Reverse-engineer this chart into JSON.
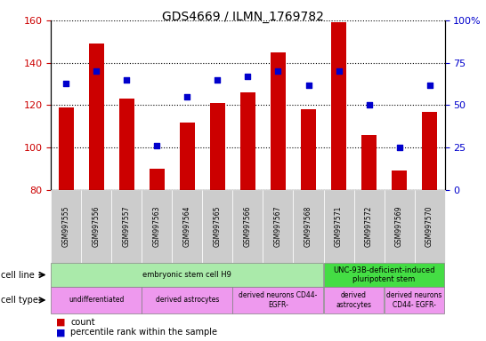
{
  "title": "GDS4669 / ILMN_1769782",
  "samples": [
    "GSM997555",
    "GSM997556",
    "GSM997557",
    "GSM997563",
    "GSM997564",
    "GSM997565",
    "GSM997566",
    "GSM997567",
    "GSM997568",
    "GSM997571",
    "GSM997572",
    "GSM997569",
    "GSM997570"
  ],
  "counts": [
    119,
    149,
    123,
    90,
    112,
    121,
    126,
    145,
    118,
    159,
    106,
    89,
    117
  ],
  "percentiles": [
    63,
    70,
    65,
    26,
    55,
    65,
    67,
    70,
    62,
    70,
    50,
    25,
    62
  ],
  "ylim_left": [
    80,
    160
  ],
  "ylim_right": [
    0,
    100
  ],
  "yticks_left": [
    80,
    100,
    120,
    140,
    160
  ],
  "yticks_right": [
    0,
    25,
    50,
    75,
    100
  ],
  "ytick_labels_right": [
    "0",
    "25",
    "50",
    "75",
    "100%"
  ],
  "bar_color": "#cc0000",
  "dot_color": "#0000cc",
  "bar_bottom": 80,
  "cell_line_groups": [
    {
      "label": "embryonic stem cell H9",
      "start": 0,
      "end": 9,
      "color": "#aaeaaa"
    },
    {
      "label": "UNC-93B-deficient-induced\npluripotent stem",
      "start": 9,
      "end": 13,
      "color": "#44dd44"
    }
  ],
  "cell_type_groups": [
    {
      "label": "undifferentiated",
      "start": 0,
      "end": 3,
      "color": "#ee99ee"
    },
    {
      "label": "derived astrocytes",
      "start": 3,
      "end": 6,
      "color": "#ee99ee"
    },
    {
      "label": "derived neurons CD44-\nEGFR-",
      "start": 6,
      "end": 9,
      "color": "#ee99ee"
    },
    {
      "label": "derived\nastrocytes",
      "start": 9,
      "end": 11,
      "color": "#ee99ee"
    },
    {
      "label": "derived neurons\nCD44- EGFR-",
      "start": 11,
      "end": 13,
      "color": "#ee99ee"
    }
  ],
  "legend_count_color": "#cc0000",
  "legend_dot_color": "#0000cc",
  "tick_label_color_left": "#cc0000",
  "tick_label_color_right": "#0000cc"
}
